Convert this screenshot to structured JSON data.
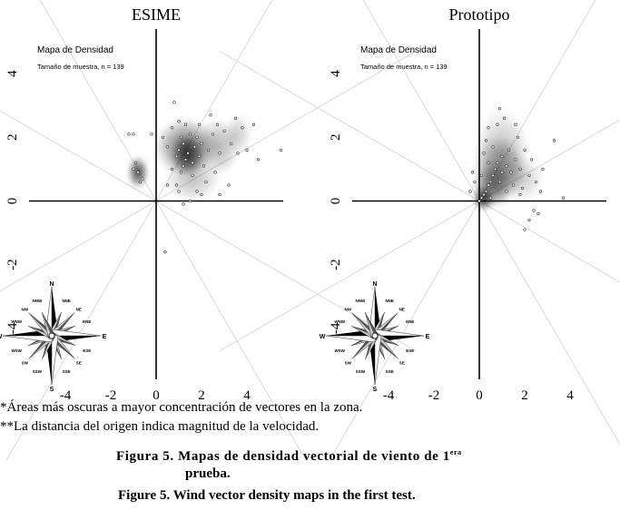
{
  "chart_data": [
    {
      "type": "scatter",
      "title": "ESIME",
      "subtitle": "Mapa de Densidad",
      "sample_label": "Tamaño de muestra, n = 139",
      "xlim": [
        -5.6,
        5.6
      ],
      "ylim": [
        -5.6,
        5.4
      ],
      "x_ticks": [
        "-4",
        "-2",
        "0",
        "2",
        "4"
      ],
      "y_ticks": [
        "4",
        "2",
        "0",
        "-2",
        "-4"
      ],
      "grid": false,
      "density_blobs": [
        {
          "x": 1.3,
          "y": 1.7,
          "rx": 1.35,
          "ry": 0.9,
          "opacity": 0.55
        },
        {
          "x": 1.4,
          "y": 1.45,
          "rx": 0.75,
          "ry": 0.65,
          "opacity": 0.7
        },
        {
          "x": 2.7,
          "y": 1.7,
          "rx": 1.0,
          "ry": 0.9,
          "opacity": 0.3
        },
        {
          "x": 1.6,
          "y": 0.7,
          "rx": 1.2,
          "ry": 0.7,
          "opacity": 0.25
        },
        {
          "x": -0.8,
          "y": 0.9,
          "rx": 0.45,
          "ry": 0.5,
          "opacity": 0.75
        },
        {
          "x": 3.6,
          "y": 2.1,
          "rx": 0.6,
          "ry": 0.6,
          "opacity": 0.2
        }
      ],
      "points": [
        [
          1.0,
          1.6
        ],
        [
          1.2,
          1.8
        ],
        [
          1.4,
          1.5
        ],
        [
          1.3,
          1.3
        ],
        [
          1.6,
          1.2
        ],
        [
          1.7,
          1.7
        ],
        [
          1.9,
          1.4
        ],
        [
          1.1,
          2.0
        ],
        [
          0.9,
          1.4
        ],
        [
          1.5,
          2.1
        ],
        [
          2.0,
          1.8
        ],
        [
          2.3,
          1.6
        ],
        [
          2.5,
          2.1
        ],
        [
          2.8,
          1.5
        ],
        [
          3.0,
          2.2
        ],
        [
          3.3,
          1.8
        ],
        [
          3.5,
          2.6
        ],
        [
          3.8,
          2.3
        ],
        [
          4.0,
          1.6
        ],
        [
          4.5,
          1.3
        ],
        [
          4.3,
          2.4
        ],
        [
          2.6,
          0.9
        ],
        [
          2.2,
          0.6
        ],
        [
          1.8,
          0.3
        ],
        [
          1.5,
          0.0
        ],
        [
          1.2,
          -0.1
        ],
        [
          0.9,
          0.5
        ],
        [
          0.7,
          1.0
        ],
        [
          0.5,
          1.7
        ],
        [
          0.3,
          2.0
        ],
        [
          0.7,
          2.3
        ],
        [
          1.0,
          2.5
        ],
        [
          1.3,
          2.4
        ],
        [
          1.9,
          2.4
        ],
        [
          2.4,
          2.7
        ],
        [
          0.8,
          3.1
        ],
        [
          -0.8,
          0.9
        ],
        [
          -0.7,
          0.6
        ],
        [
          -1.0,
          1.0
        ],
        [
          -0.9,
          1.2
        ],
        [
          -0.6,
          0.7
        ],
        [
          -1.2,
          2.1
        ],
        [
          -1.0,
          2.1
        ],
        [
          -0.2,
          2.1
        ],
        [
          3.2,
          0.5
        ],
        [
          2.8,
          0.2
        ],
        [
          0.5,
          0.5
        ],
        [
          1.1,
          0.9
        ],
        [
          1.6,
          0.8
        ],
        [
          2.1,
          1.1
        ],
        [
          0.4,
          -1.6
        ],
        [
          5.5,
          1.6
        ],
        [
          1.2,
          1.1
        ],
        [
          1.8,
          2.0
        ],
        [
          2.7,
          2.4
        ],
        [
          3.6,
          1.5
        ],
        [
          1.0,
          0.3
        ],
        [
          2.0,
          0.2
        ]
      ]
    },
    {
      "type": "scatter",
      "title": "Prototipo",
      "subtitle": "Mapa de Densidad",
      "sample_label": "Tamaño de muestra, n = 139",
      "xlim": [
        -5.6,
        5.6
      ],
      "ylim": [
        -5.6,
        5.4
      ],
      "x_ticks": [
        "-4",
        "-2",
        "0",
        "2",
        "4"
      ],
      "y_ticks": [
        "4",
        "2",
        "0",
        "-2",
        "-4"
      ],
      "grid": false,
      "density_blobs": [
        {
          "x": 0.2,
          "y": 0.1,
          "rx": 0.45,
          "ry": 0.4,
          "opacity": 0.85
        },
        {
          "x": 0.6,
          "y": 0.5,
          "rx": 0.85,
          "ry": 0.7,
          "opacity": 0.5
        },
        {
          "x": 0.9,
          "y": 1.0,
          "rx": 1.15,
          "ry": 1.05,
          "opacity": 0.4
        },
        {
          "x": 1.0,
          "y": 1.5,
          "rx": 1.2,
          "ry": 1.4,
          "opacity": 0.25
        },
        {
          "x": 1.9,
          "y": 0.7,
          "rx": 0.9,
          "ry": 0.7,
          "opacity": 0.2
        }
      ],
      "points": [
        [
          0.1,
          0.1
        ],
        [
          0.2,
          0.2
        ],
        [
          0.0,
          0.0
        ],
        [
          0.3,
          0.3
        ],
        [
          0.4,
          0.5
        ],
        [
          0.5,
          0.6
        ],
        [
          0.6,
          0.8
        ],
        [
          0.7,
          1.0
        ],
        [
          0.8,
          1.2
        ],
        [
          1.0,
          1.4
        ],
        [
          1.2,
          1.1
        ],
        [
          1.4,
          0.9
        ],
        [
          1.3,
          1.6
        ],
        [
          1.6,
          1.3
        ],
        [
          1.8,
          1.0
        ],
        [
          1.5,
          0.5
        ],
        [
          1.9,
          0.4
        ],
        [
          2.2,
          0.8
        ],
        [
          2.5,
          0.6
        ],
        [
          2.8,
          1.0
        ],
        [
          3.3,
          1.9
        ],
        [
          3.7,
          0.1
        ],
        [
          2.4,
          -0.3
        ],
        [
          2.6,
          -0.4
        ],
        [
          2.2,
          -0.6
        ],
        [
          2.0,
          -0.9
        ],
        [
          0.8,
          2.4
        ],
        [
          1.1,
          2.6
        ],
        [
          0.9,
          2.9
        ],
        [
          0.4,
          2.3
        ],
        [
          0.3,
          1.9
        ],
        [
          0.2,
          1.5
        ],
        [
          0.4,
          1.2
        ],
        [
          0.1,
          0.8
        ],
        [
          -0.2,
          0.6
        ],
        [
          -0.4,
          0.3
        ],
        [
          -0.3,
          0.9
        ],
        [
          1.7,
          2.0
        ],
        [
          2.0,
          1.6
        ],
        [
          1.2,
          0.3
        ],
        [
          0.9,
          0.6
        ],
        [
          1.6,
          2.4
        ],
        [
          2.3,
          1.3
        ],
        [
          0.6,
          1.7
        ],
        [
          1.8,
          0.2
        ],
        [
          0.5,
          0.1
        ],
        [
          1.0,
          0.9
        ],
        [
          2.7,
          0.3
        ]
      ]
    }
  ],
  "compass": {
    "labels": [
      {
        "text": "N",
        "angle": 0,
        "major": true
      },
      {
        "text": "NNE",
        "angle": 22.5,
        "major": false
      },
      {
        "text": "NE",
        "angle": 45,
        "major": false
      },
      {
        "text": "ENE",
        "angle": 67.5,
        "major": false
      },
      {
        "text": "E",
        "angle": 90,
        "major": true
      },
      {
        "text": "ESE",
        "angle": 112.5,
        "major": false
      },
      {
        "text": "SE",
        "angle": 135,
        "major": false
      },
      {
        "text": "SSE",
        "angle": 157.5,
        "major": false
      },
      {
        "text": "S",
        "angle": 180,
        "major": true
      },
      {
        "text": "SSW",
        "angle": 202.5,
        "major": false
      },
      {
        "text": "SW",
        "angle": 225,
        "major": false
      },
      {
        "text": "WSW",
        "angle": 247.5,
        "major": false
      },
      {
        "text": "W",
        "angle": 270,
        "major": true
      },
      {
        "text": "WNW",
        "angle": 292.5,
        "major": false
      },
      {
        "text": "NW",
        "angle": 315,
        "major": false
      },
      {
        "text": "NNW",
        "angle": 337.5,
        "major": false
      }
    ]
  },
  "notes": {
    "line1": "*Áreas más oscuras a mayor concentración de vectores en la zona.",
    "line2": "**La distancia del origen indica magnitud de la velocidad."
  },
  "caption": {
    "es_main": "Figura 5. Mapas de densidad vectorial de viento de 1",
    "es_sup": "era",
    "es_line2": "prueba.",
    "en": "Figure 5. Wind vector density maps in the first test."
  }
}
